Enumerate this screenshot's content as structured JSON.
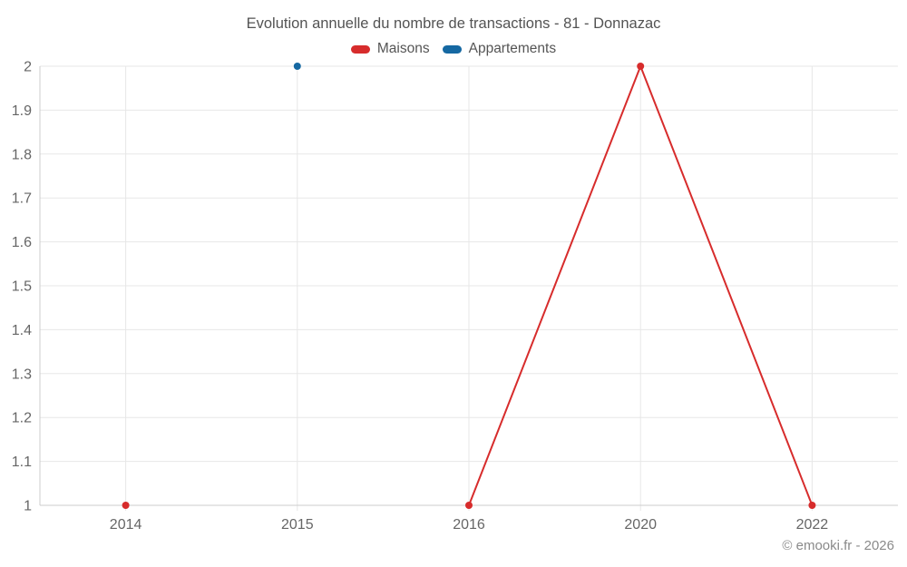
{
  "chart_data": {
    "type": "line",
    "title": "Evolution annuelle du nombre de transactions - 81 - Donnazac",
    "categories": [
      "2014",
      "2015",
      "2016",
      "2020",
      "2022"
    ],
    "series": [
      {
        "name": "Maisons",
        "color": "#d72c2c",
        "values": [
          1,
          null,
          1,
          2,
          1
        ]
      },
      {
        "name": "Appartements",
        "color": "#1568a2",
        "values": [
          null,
          2,
          null,
          null,
          null
        ]
      }
    ],
    "ylim": [
      1,
      2
    ],
    "ytick_labels": [
      "1",
      "1.1",
      "1.2",
      "1.3",
      "1.4",
      "1.5",
      "1.6",
      "1.7",
      "1.8",
      "1.9",
      "2"
    ],
    "grid": true,
    "legend_position": "top",
    "marker_radius": 4,
    "line_width": 2
  },
  "colors": {
    "grid": "#e7e7e7",
    "axis": "#cccccc",
    "axis_text": "#666666",
    "title_text": "#535353",
    "legend_text": "#555555",
    "copyright_text": "#8a8a8a"
  },
  "footer": {
    "copyright": "© emooki.fr - 2026"
  }
}
